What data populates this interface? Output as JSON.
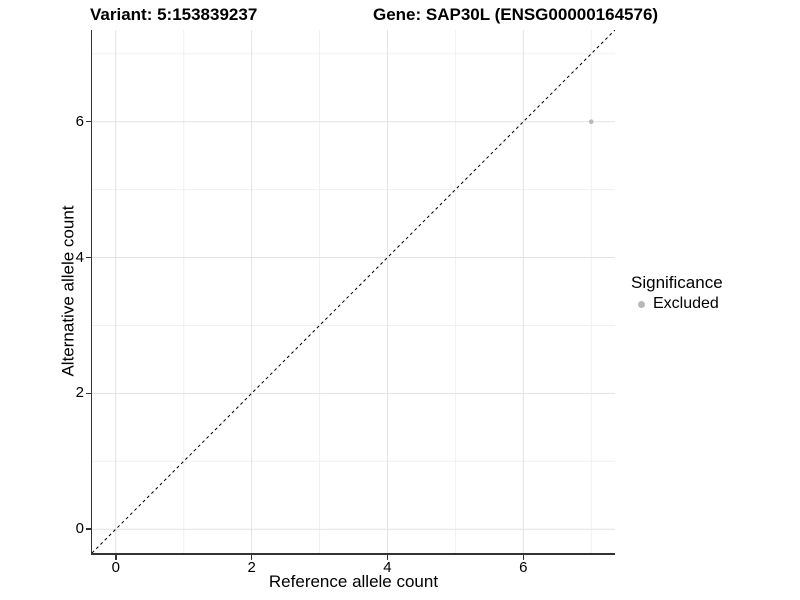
{
  "chart_data": {
    "type": "scatter",
    "titles": {
      "variant": "Variant: 5:153839237",
      "gene": "Gene: SAP30L (ENSG00000164576)"
    },
    "xlabel": "Reference allele count",
    "ylabel": "Alternative allele count",
    "xlim": [
      -0.35,
      7.35
    ],
    "ylim": [
      -0.35,
      7.35
    ],
    "x_ticks": [
      0,
      2,
      4,
      6
    ],
    "y_ticks": [
      0,
      2,
      4,
      6
    ],
    "x_minor_ticks": [
      1,
      3,
      5,
      7
    ],
    "y_minor_ticks": [
      1,
      3,
      5,
      7
    ],
    "grid": "on",
    "points": [
      {
        "x": 7,
        "y": 6,
        "series": "Excluded"
      }
    ],
    "identity_line": {
      "style": "dashed",
      "from": [
        -0.35,
        -0.35
      ],
      "to": [
        7.35,
        7.35
      ]
    },
    "legend": {
      "position": "right",
      "title": "Significance",
      "entries": [
        {
          "label": "Excluded",
          "color": "#B8B8B8"
        }
      ]
    },
    "colors": {
      "grid_major": "#E3E3E3",
      "grid_minor": "#F0F0F0",
      "axis_line": "#333333",
      "identity_line": "#000000",
      "point": "#B8B8B8",
      "text": "#000000"
    }
  }
}
